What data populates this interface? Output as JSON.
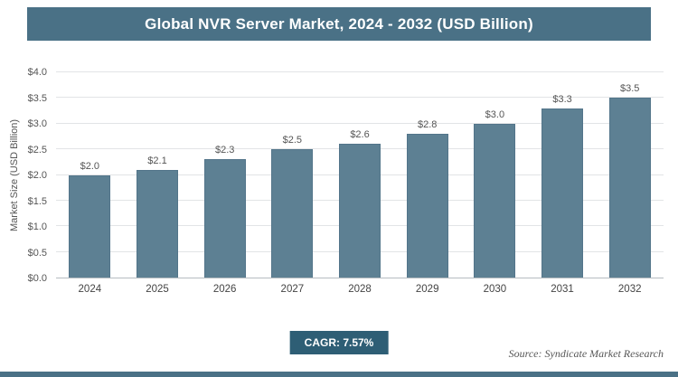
{
  "chart_data": {
    "type": "bar",
    "title": "Global NVR Server Market, 2024 - 2032 (USD Billion)",
    "categories": [
      "2024",
      "2025",
      "2026",
      "2027",
      "2028",
      "2029",
      "2030",
      "2031",
      "2032"
    ],
    "values": [
      2.0,
      2.1,
      2.3,
      2.5,
      2.6,
      2.8,
      3.0,
      3.3,
      3.5
    ],
    "value_labels": [
      "$2.0",
      "$2.1",
      "$2.3",
      "$2.5",
      "$2.6",
      "$2.8",
      "$3.0",
      "$3.3",
      "$3.5"
    ],
    "xlabel": "",
    "ylabel": "Market Size (USD Billion)",
    "ylim": [
      0,
      4.0
    ],
    "ytick_step": 0.5,
    "ytick_prefix": "$",
    "grid": true,
    "legend": "none",
    "bar_color": "#5d8093",
    "title_bg_color": "#4a7186",
    "accent_color": "#4a7186",
    "badge_color": "#2e5e75"
  },
  "footer": {
    "cagr_label": "CAGR: 7.57%",
    "source": "Source: Syndicate Market Research"
  }
}
